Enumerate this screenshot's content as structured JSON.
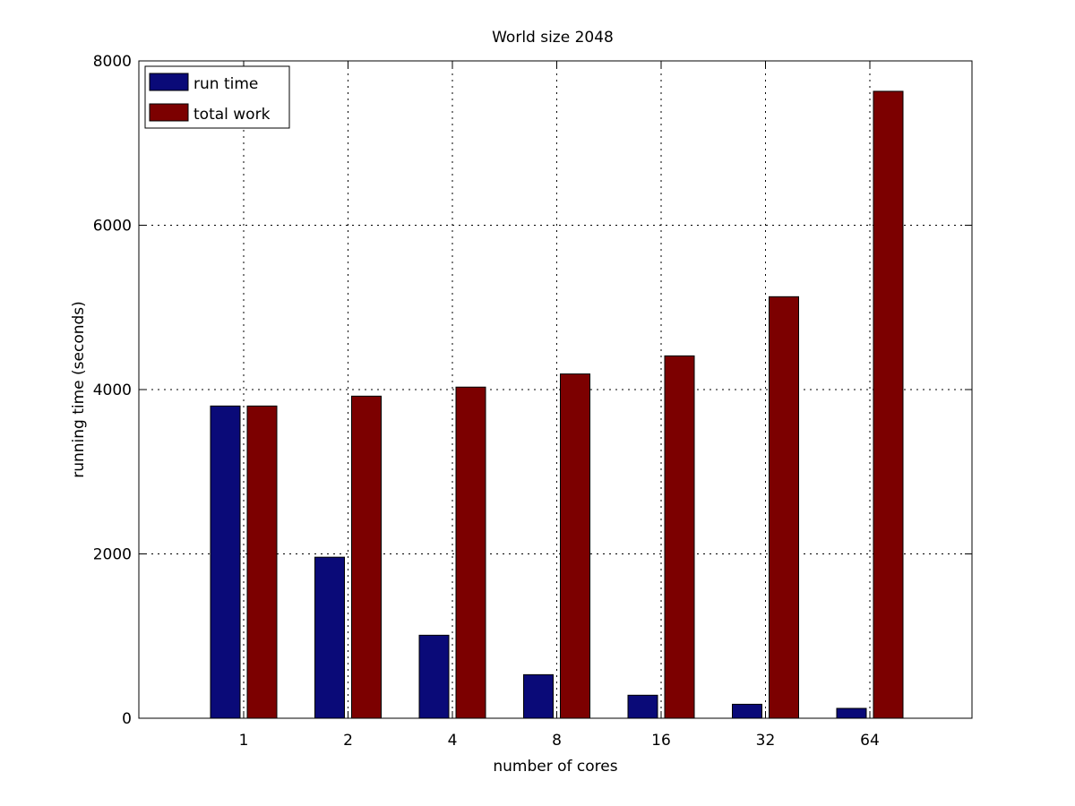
{
  "chart_data": {
    "type": "bar",
    "title": "World size 2048",
    "xlabel": "number of cores",
    "ylabel": "running time (seconds)",
    "categories": [
      "1",
      "2",
      "4",
      "8",
      "16",
      "32",
      "64"
    ],
    "series": [
      {
        "name": "run time",
        "color": "#0a0a78",
        "values": [
          3800,
          1960,
          1010,
          530,
          280,
          170,
          120
        ]
      },
      {
        "name": "total work",
        "color": "#7c0000",
        "values": [
          3800,
          3920,
          4030,
          4190,
          4410,
          5130,
          7630
        ]
      }
    ],
    "ylim": [
      0,
      8000
    ],
    "yticks": [
      "0",
      "2000",
      "4000",
      "6000",
      "8000"
    ],
    "grid": true,
    "legend_position": "top-left"
  }
}
